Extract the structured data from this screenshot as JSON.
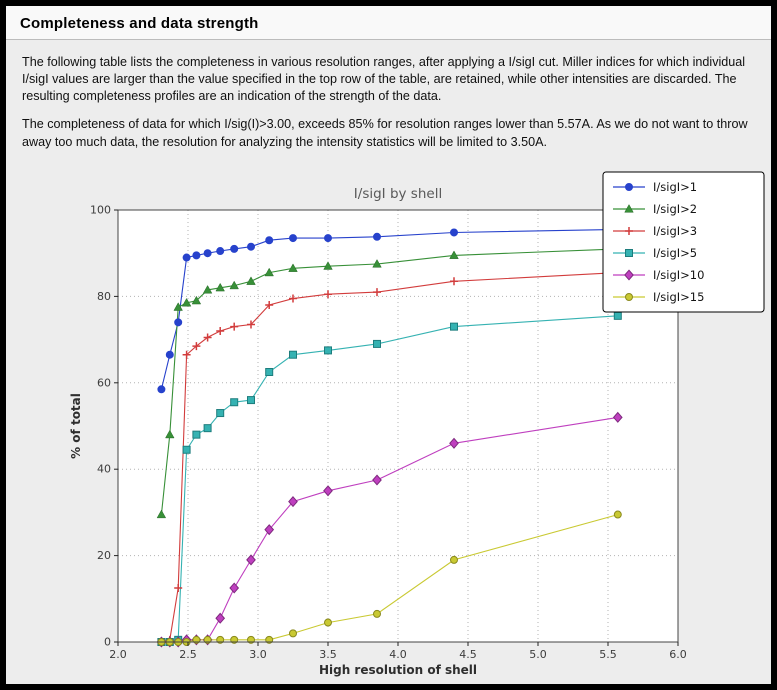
{
  "page": {
    "title": "Completeness and data strength",
    "paragraphs": [
      "The following table lists the completeness in various resolution ranges, after applying a I/sigI cut. Miller indices for which individual I/sigI values are larger than the value specified in the top row of the table, are retained, while other intensities are discarded. The resulting completeness profiles are an indication of the strength of the data.",
      "The completeness of data for which I/sig(I)>3.00, exceeds  85% for resolution ranges lower than 5.57A. As we do not want to throw away too much data, the resolution for analyzing the intensity statistics will be limited to 3.50A."
    ]
  },
  "chart_data": {
    "type": "line",
    "title": "I/sigI by shell",
    "xlabel": "High resolution of shell",
    "ylabel": "% of total",
    "xlim": [
      2.0,
      6.0
    ],
    "ylim": [
      0,
      100
    ],
    "grid": true,
    "legend_position": "top-right",
    "xticks": [
      2.0,
      2.5,
      3.0,
      3.5,
      4.0,
      4.5,
      5.0,
      5.5,
      6.0
    ],
    "xtick_labels": [
      "2.0",
      "2.5",
      "3.0",
      "3.5",
      "4.0",
      "4.5",
      "5.0",
      "5.5",
      "6.0"
    ],
    "yticks": [
      0,
      20,
      40,
      60,
      80,
      100
    ],
    "ytick_labels": [
      "0",
      "20",
      "40",
      "60",
      "80",
      "100"
    ],
    "x": [
      2.31,
      2.37,
      2.43,
      2.49,
      2.56,
      2.64,
      2.73,
      2.83,
      2.95,
      3.08,
      3.25,
      3.5,
      3.85,
      4.4,
      5.57
    ],
    "series": [
      {
        "name": "I/sigI>1",
        "color": "#2742cc",
        "marker": "circle",
        "marker_edge": "#2742cc",
        "values": [
          58.5,
          66.5,
          74.0,
          89.0,
          89.5,
          90.0,
          90.5,
          91.0,
          91.5,
          93.0,
          93.5,
          93.5,
          93.8,
          94.8,
          95.5
        ]
      },
      {
        "name": "I/sigI>2",
        "color": "#389038",
        "marker": "triangle",
        "marker_edge": "#256825",
        "values": [
          29.5,
          48.0,
          77.5,
          78.5,
          79.0,
          81.5,
          82.0,
          82.5,
          83.5,
          85.5,
          86.5,
          87.0,
          87.5,
          89.5,
          91.0
        ]
      },
      {
        "name": "I/sigI>3",
        "color": "#d23c3c",
        "marker": "plus",
        "marker_edge": "#d23c3c",
        "values": [
          0.0,
          0.5,
          12.5,
          66.5,
          68.5,
          70.5,
          72.0,
          73.0,
          73.5,
          78.0,
          79.5,
          80.5,
          81.0,
          83.5,
          85.5
        ]
      },
      {
        "name": "I/sigI>5",
        "color": "#35b2b2",
        "marker": "square",
        "marker_edge": "#1d7d7d",
        "values": [
          0.0,
          0.0,
          0.5,
          44.5,
          48.0,
          49.5,
          53.0,
          55.5,
          56.0,
          62.5,
          66.5,
          67.5,
          69.0,
          73.0,
          75.5
        ]
      },
      {
        "name": "I/sigI>10",
        "color": "#bf3fbf",
        "marker": "diamond",
        "marker_edge": "#7d2a7d",
        "values": [
          0.0,
          0.0,
          0.0,
          0.5,
          0.5,
          0.5,
          5.5,
          12.5,
          19.0,
          26.0,
          32.5,
          35.0,
          37.5,
          46.0,
          52.0
        ]
      },
      {
        "name": "I/sigI>15",
        "color": "#c9c932",
        "marker": "circle",
        "marker_edge": "#8a8a1e",
        "values": [
          0.0,
          0.0,
          0.0,
          0.0,
          0.5,
          0.5,
          0.5,
          0.5,
          0.5,
          0.5,
          2.0,
          4.5,
          6.5,
          19.0,
          29.5
        ]
      }
    ]
  }
}
